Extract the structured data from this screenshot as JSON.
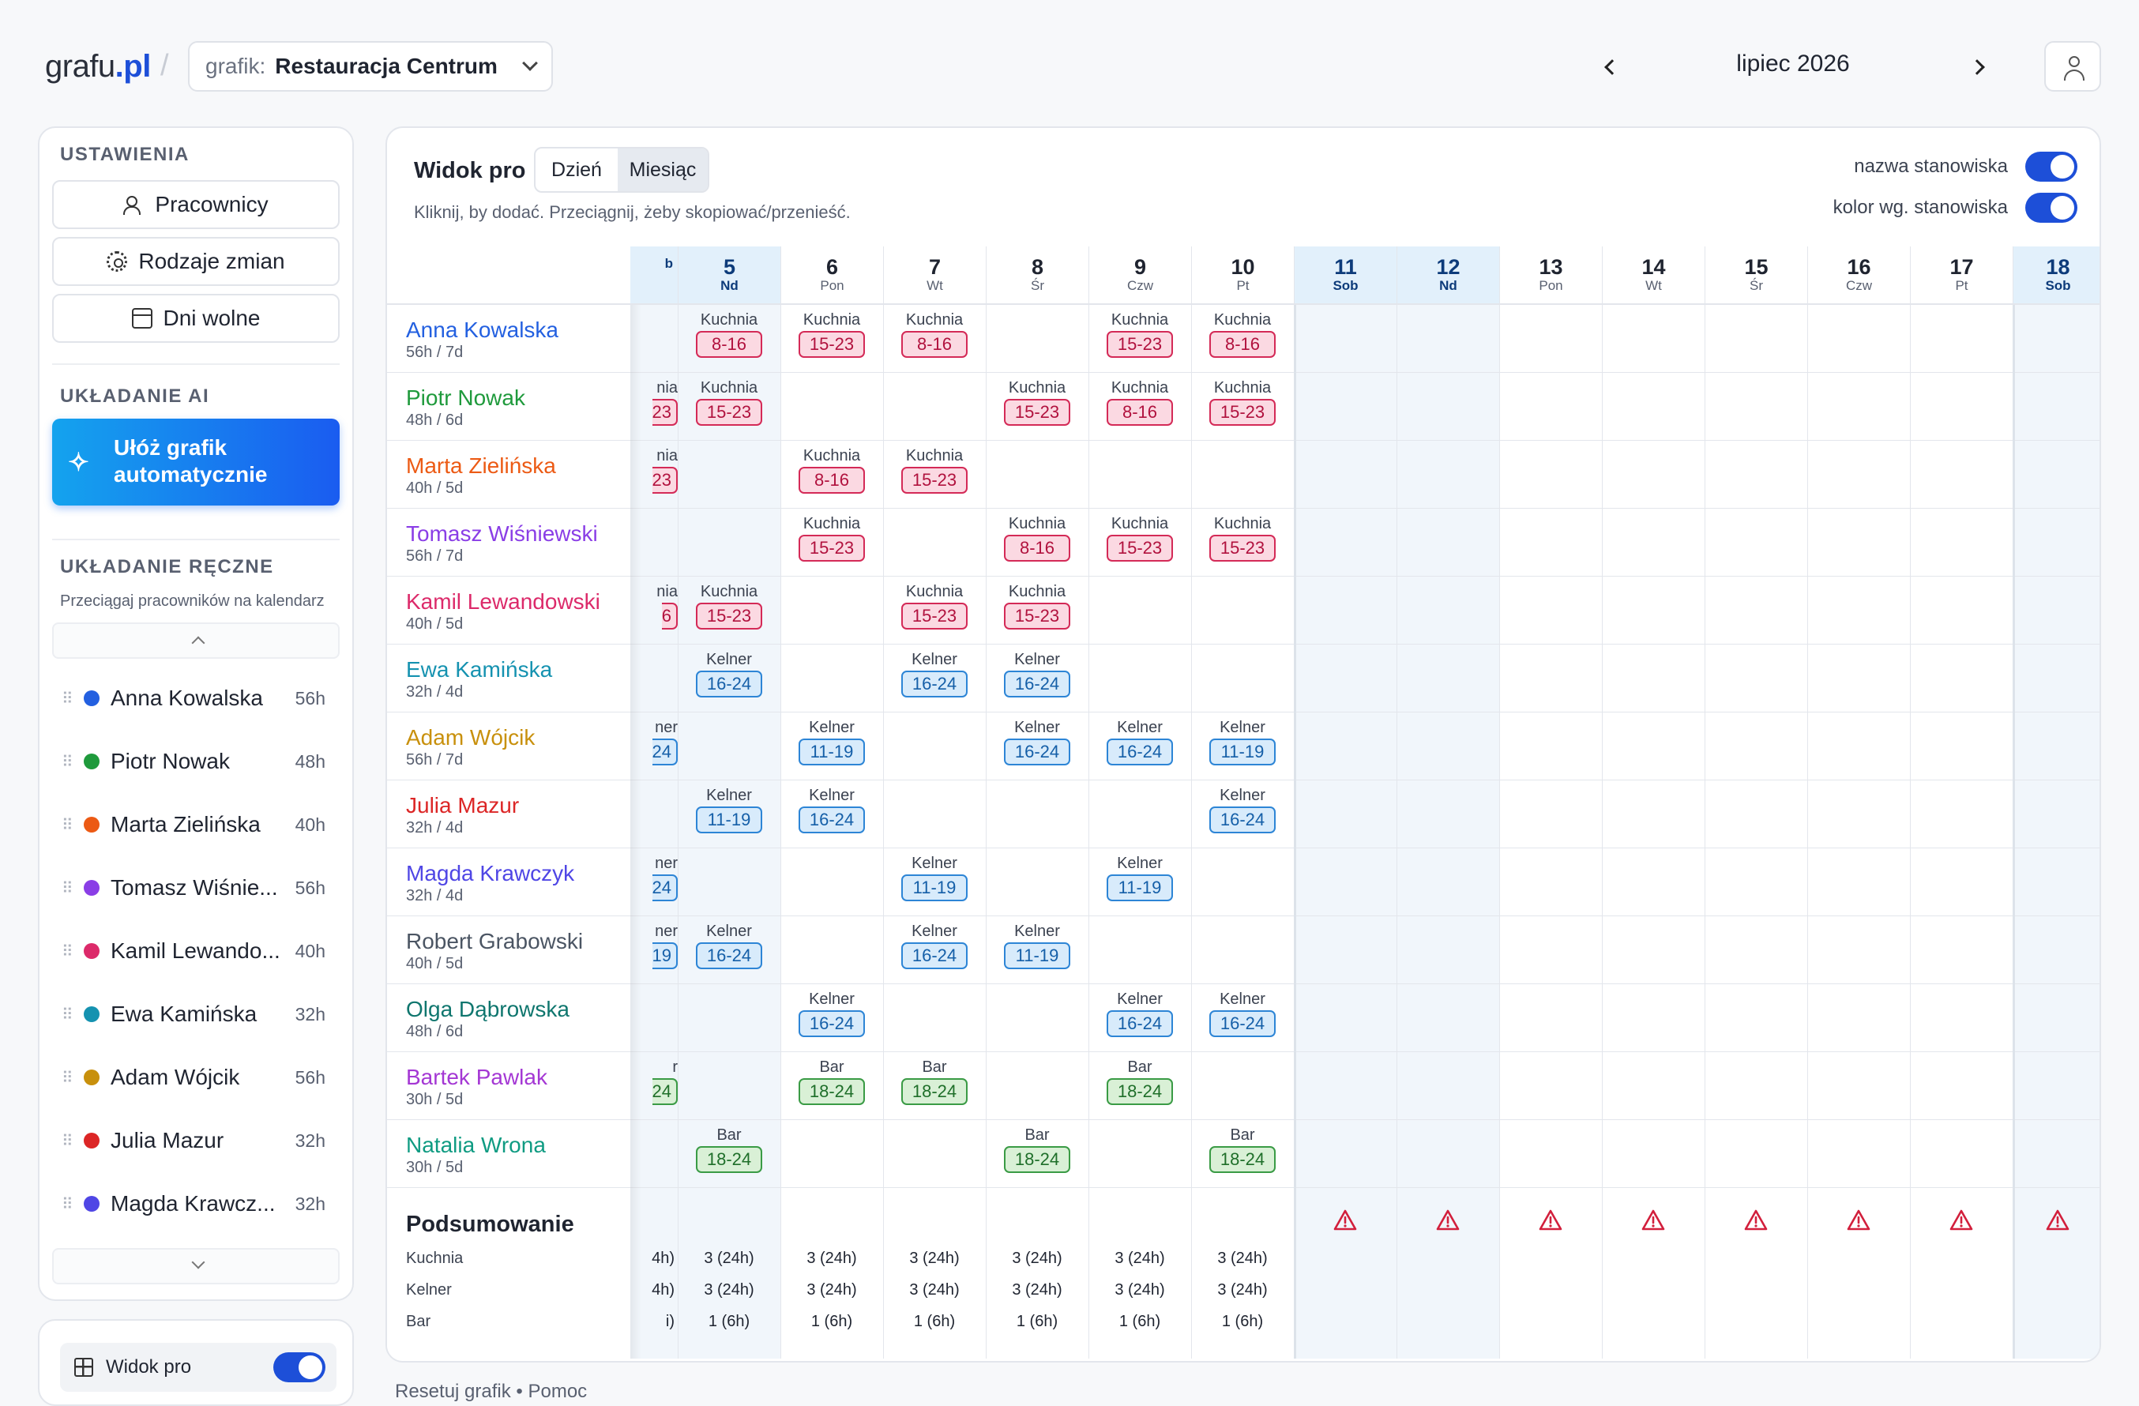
{
  "topbar": {
    "logo_main": "grafu",
    "logo_tld": ".pl",
    "schedule_label": "grafik:",
    "schedule_name": "Restauracja Centrum",
    "month": "lipiec 2026"
  },
  "sidebar": {
    "settings_title": "USTAWIENIA",
    "settings_items": [
      {
        "label": "Pracownicy",
        "icon": "users-icon"
      },
      {
        "label": "Rodzaje zmian",
        "icon": "gear-icon"
      },
      {
        "label": "Dni wolne",
        "icon": "calendar-icon"
      }
    ],
    "ai_title": "UKŁADANIE AI",
    "ai_button": "Ułóż grafik automatycznie",
    "manual_title": "UKŁADANIE RĘCZNE",
    "manual_hint": "Przeciągaj pracowników na kalendarz",
    "employees": [
      {
        "name": "Anna Kowalska",
        "hours": "56h",
        "color": "#2360e0"
      },
      {
        "name": "Piotr Nowak",
        "hours": "48h",
        "color": "#1f9a3c"
      },
      {
        "name": "Marta Zielińska",
        "hours": "40h",
        "color": "#ec5a14"
      },
      {
        "name": "Tomasz Wiśnie...",
        "hours": "56h",
        "color": "#8a3ee6"
      },
      {
        "name": "Kamil Lewando...",
        "hours": "40h",
        "color": "#dc2a6a"
      },
      {
        "name": "Ewa Kamińska",
        "hours": "32h",
        "color": "#1592b0"
      },
      {
        "name": "Adam Wójcik",
        "hours": "56h",
        "color": "#c8900c"
      },
      {
        "name": "Julia Mazur",
        "hours": "32h",
        "color": "#dc2626"
      },
      {
        "name": "Magda Krawcz...",
        "hours": "32h",
        "color": "#4f46e5"
      }
    ],
    "pro_toggle_label": "Widok pro",
    "pro_toggle_on": true
  },
  "main": {
    "title": "Widok pro",
    "view_day": "Dzień",
    "view_month": "Miesiąc",
    "hint": "Kliknij, by dodać. Przeciągnij, żeby skopiować/przenieść.",
    "option_name": "nazwa stanowiska",
    "option_color": "kolor wg. stanowiska",
    "days": [
      {
        "n": "",
        "w": "b",
        "weekend": true
      },
      {
        "n": "5",
        "w": "Nd",
        "weekend": true
      },
      {
        "n": "6",
        "w": "Pon",
        "weekend": false
      },
      {
        "n": "7",
        "w": "Wt",
        "weekend": false
      },
      {
        "n": "8",
        "w": "Śr",
        "weekend": false
      },
      {
        "n": "9",
        "w": "Czw",
        "weekend": false
      },
      {
        "n": "10",
        "w": "Pt",
        "weekend": false
      },
      {
        "n": "11",
        "w": "Sob",
        "weekend": true
      },
      {
        "n": "12",
        "w": "Nd",
        "weekend": true
      },
      {
        "n": "13",
        "w": "Pon",
        "weekend": false
      },
      {
        "n": "14",
        "w": "Wt",
        "weekend": false
      },
      {
        "n": "15",
        "w": "Śr",
        "weekend": false
      },
      {
        "n": "16",
        "w": "Czw",
        "weekend": false
      },
      {
        "n": "17",
        "w": "Pt",
        "weekend": false
      },
      {
        "n": "18",
        "w": "Sob",
        "weekend": true
      }
    ],
    "rows": [
      {
        "name": "Anna Kowalska",
        "sub": "56h / 7d",
        "color": "#2360e0",
        "shifts": [
          null,
          [
            "Kuchnia",
            "8-16",
            "k"
          ],
          [
            "Kuchnia",
            "15-23",
            "k"
          ],
          [
            "Kuchnia",
            "8-16",
            "k"
          ],
          null,
          [
            "Kuchnia",
            "15-23",
            "k"
          ],
          [
            "Kuchnia",
            "8-16",
            "k"
          ]
        ]
      },
      {
        "name": "Piotr Nowak",
        "sub": "48h / 6d",
        "color": "#1f9a3c",
        "shifts": [
          [
            "nia",
            "23",
            "k"
          ],
          [
            "Kuchnia",
            "15-23",
            "k"
          ],
          null,
          null,
          [
            "Kuchnia",
            "15-23",
            "k"
          ],
          [
            "Kuchnia",
            "8-16",
            "k"
          ],
          [
            "Kuchnia",
            "15-23",
            "k"
          ]
        ]
      },
      {
        "name": "Marta Zielińska",
        "sub": "40h / 5d",
        "color": "#ec5a14",
        "shifts": [
          [
            "nia",
            "23",
            "k"
          ],
          null,
          [
            "Kuchnia",
            "8-16",
            "k"
          ],
          [
            "Kuchnia",
            "15-23",
            "k"
          ],
          null,
          null,
          null
        ]
      },
      {
        "name": "Tomasz Wiśniewski",
        "sub": "56h / 7d",
        "color": "#8a3ee6",
        "shifts": [
          null,
          null,
          [
            "Kuchnia",
            "15-23",
            "k"
          ],
          null,
          [
            "Kuchnia",
            "8-16",
            "k"
          ],
          [
            "Kuchnia",
            "15-23",
            "k"
          ],
          [
            "Kuchnia",
            "15-23",
            "k"
          ]
        ]
      },
      {
        "name": "Kamil Lewandowski",
        "sub": "40h / 5d",
        "color": "#dc2a6a",
        "shifts": [
          [
            "nia",
            "6",
            "k"
          ],
          [
            "Kuchnia",
            "15-23",
            "k"
          ],
          null,
          [
            "Kuchnia",
            "15-23",
            "k"
          ],
          [
            "Kuchnia",
            "15-23",
            "k"
          ],
          null,
          null
        ]
      },
      {
        "name": "Ewa Kamińska",
        "sub": "32h / 4d",
        "color": "#1592b0",
        "shifts": [
          null,
          [
            "Kelner",
            "16-24",
            "w"
          ],
          null,
          [
            "Kelner",
            "16-24",
            "w"
          ],
          [
            "Kelner",
            "16-24",
            "w"
          ],
          null,
          null
        ]
      },
      {
        "name": "Adam Wójcik",
        "sub": "56h / 7d",
        "color": "#c8900c",
        "shifts": [
          [
            "ner",
            "24",
            "w"
          ],
          null,
          [
            "Kelner",
            "11-19",
            "w"
          ],
          null,
          [
            "Kelner",
            "16-24",
            "w"
          ],
          [
            "Kelner",
            "16-24",
            "w"
          ],
          [
            "Kelner",
            "11-19",
            "w"
          ]
        ]
      },
      {
        "name": "Julia Mazur",
        "sub": "32h / 4d",
        "color": "#dc2626",
        "shifts": [
          null,
          [
            "Kelner",
            "11-19",
            "w"
          ],
          [
            "Kelner",
            "16-24",
            "w"
          ],
          null,
          null,
          null,
          [
            "Kelner",
            "16-24",
            "w"
          ]
        ]
      },
      {
        "name": "Magda Krawczyk",
        "sub": "32h / 4d",
        "color": "#4f46e5",
        "shifts": [
          [
            "ner",
            "24",
            "w"
          ],
          null,
          null,
          [
            "Kelner",
            "11-19",
            "w"
          ],
          null,
          [
            "Kelner",
            "11-19",
            "w"
          ],
          null
        ]
      },
      {
        "name": "Robert Grabowski",
        "sub": "40h / 5d",
        "color": "#4b5563",
        "shifts": [
          [
            "ner",
            "19",
            "w"
          ],
          [
            "Kelner",
            "16-24",
            "w"
          ],
          null,
          [
            "Kelner",
            "16-24",
            "w"
          ],
          [
            "Kelner",
            "11-19",
            "w"
          ],
          null,
          null
        ]
      },
      {
        "name": "Olga Dąbrowska",
        "sub": "48h / 6d",
        "color": "#0f766e",
        "shifts": [
          null,
          null,
          [
            "Kelner",
            "16-24",
            "w"
          ],
          null,
          null,
          [
            "Kelner",
            "16-24",
            "w"
          ],
          [
            "Kelner",
            "16-24",
            "w"
          ]
        ]
      },
      {
        "name": "Bartek Pawlak",
        "sub": "30h / 5d",
        "color": "#a437d4",
        "shifts": [
          [
            "r",
            "24",
            "b"
          ],
          null,
          [
            "Bar",
            "18-24",
            "b"
          ],
          [
            "Bar",
            "18-24",
            "b"
          ],
          null,
          [
            "Bar",
            "18-24",
            "b"
          ],
          null
        ]
      },
      {
        "name": "Natalia Wrona",
        "sub": "30h / 5d",
        "color": "#0f9b82",
        "shifts": [
          null,
          [
            "Bar",
            "18-24",
            "b"
          ],
          null,
          null,
          [
            "Bar",
            "18-24",
            "b"
          ],
          null,
          [
            "Bar",
            "18-24",
            "b"
          ]
        ]
      }
    ],
    "summary": {
      "title": "Podsumowanie",
      "labels": [
        "Kuchnia",
        "Kelner",
        "Bar"
      ],
      "values": [
        [
          "4h)",
          "4h)",
          "i)"
        ],
        [
          "3 (24h)",
          "3 (24h)",
          "1 (6h)"
        ],
        [
          "3 (24h)",
          "3 (24h)",
          "1 (6h)"
        ],
        [
          "3 (24h)",
          "3 (24h)",
          "1 (6h)"
        ],
        [
          "3 (24h)",
          "3 (24h)",
          "1 (6h)"
        ],
        [
          "3 (24h)",
          "3 (24h)",
          "1 (6h)"
        ],
        [
          "3 (24h)",
          "3 (24h)",
          "1 (6h)"
        ]
      ],
      "warning_icon": "warning-triangle-icon",
      "warning_color": "#d21f3c"
    }
  },
  "footer": {
    "links": "Resetuj grafik  •  Pomoc"
  }
}
